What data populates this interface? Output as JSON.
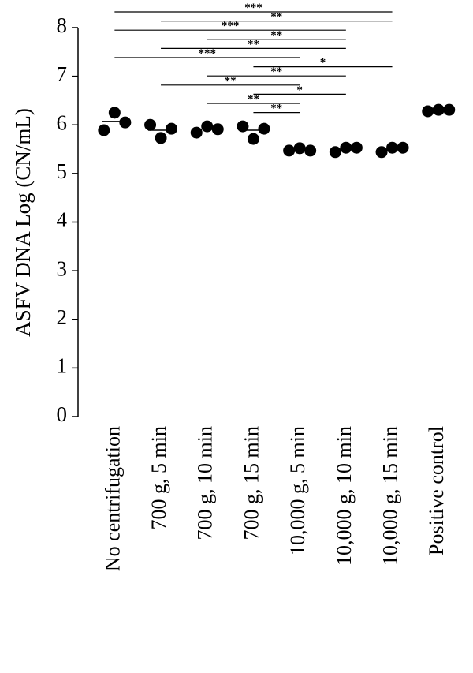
{
  "chart_data": {
    "type": "dot",
    "y_label": "ASFV DNA Log (CN/mL)",
    "categories": [
      "No centrifugation",
      "700 g, 5 min",
      "700 g, 10 min",
      "700 g, 15 min",
      "10,000 g, 5 min",
      "10,000 g, 10 min",
      "10,000 g, 15 min",
      "Positive control"
    ],
    "values": [
      [
        5.89,
        6.25,
        6.05
      ],
      [
        6.0,
        5.73,
        5.92
      ],
      [
        5.84,
        5.97,
        5.91
      ],
      [
        5.97,
        5.71,
        5.92
      ],
      [
        5.47,
        5.52,
        5.47
      ],
      [
        5.44,
        5.53,
        5.53
      ],
      [
        5.44,
        5.53,
        5.53
      ],
      [
        6.28,
        6.31,
        6.31
      ]
    ],
    "means": [
      6.07,
      5.89,
      5.91,
      5.89,
      5.49,
      5.5,
      5.5,
      6.3
    ],
    "color": "#000000",
    "ylim": [
      0,
      8
    ],
    "yticks": [
      0,
      1,
      2,
      3,
      4,
      5,
      6,
      7,
      8
    ],
    "comparisons": [
      {
        "groups": [
          "No centrifugation",
          "10,000 g, 15 min"
        ],
        "label": "***"
      },
      {
        "groups": [
          "700 g, 5 min",
          "10,000 g, 15 min"
        ],
        "label": "**"
      },
      {
        "groups": [
          "No centrifugation",
          "10,000 g, 10 min"
        ],
        "label": "***"
      },
      {
        "groups": [
          "700 g, 10 min",
          "10,000 g, 10 min"
        ],
        "label": "**"
      },
      {
        "groups": [
          "700 g, 5 min",
          "10,000 g, 10 min"
        ],
        "label": "**"
      },
      {
        "groups": [
          "No centrifugation",
          "10,000 g, 5 min"
        ],
        "label": "***"
      },
      {
        "groups": [
          "700 g, 15 min",
          "10,000 g, 15 min"
        ],
        "label": "*"
      },
      {
        "groups": [
          "700 g, 10 min",
          "10,000 g, 10 min"
        ],
        "label": "**"
      },
      {
        "groups": [
          "700 g, 5 min",
          "10,000 g, 5 min"
        ],
        "label": "**"
      },
      {
        "groups": [
          "700 g, 15 min",
          "10,000 g, 10 min"
        ],
        "label": "*"
      },
      {
        "groups": [
          "700 g, 10 min",
          "10,000 g, 5 min"
        ],
        "label": "**"
      },
      {
        "groups": [
          "700 g, 15 min",
          "10,000 g, 5 min"
        ],
        "label": "**"
      }
    ]
  }
}
